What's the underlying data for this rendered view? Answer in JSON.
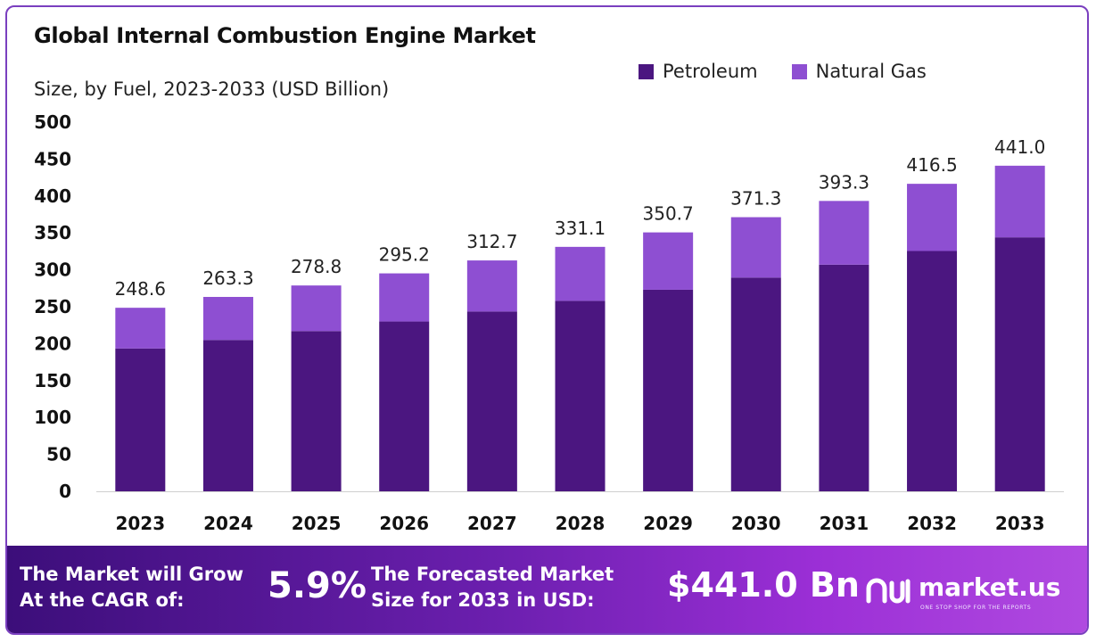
{
  "header": {
    "title": "Global Internal Combustion Engine Market",
    "subtitle": "Size, by Fuel, 2023-2033 (USD Billion)"
  },
  "legend": [
    {
      "label": "Petroleum",
      "color": "#4b1680"
    },
    {
      "label": "Natural Gas",
      "color": "#8e4fd2"
    }
  ],
  "chart_data": {
    "type": "bar",
    "stacked": true,
    "categories": [
      "2023",
      "2024",
      "2025",
      "2026",
      "2027",
      "2028",
      "2029",
      "2030",
      "2031",
      "2032",
      "2033"
    ],
    "series": [
      {
        "name": "Petroleum",
        "color": "#4b1680",
        "values": [
          193.5,
          205.0,
          217.0,
          230.0,
          243.5,
          258.0,
          273.0,
          289.5,
          307.0,
          325.5,
          344.0
        ]
      },
      {
        "name": "Natural Gas",
        "color": "#8e4fd2",
        "values": [
          55.1,
          58.3,
          61.8,
          65.2,
          69.2,
          73.1,
          77.7,
          81.8,
          86.3,
          91.0,
          97.0
        ]
      }
    ],
    "totals": [
      "248.6",
      "263.3",
      "278.8",
      "295.2",
      "312.7",
      "331.1",
      "350.7",
      "371.3",
      "393.3",
      "416.5",
      "441.0"
    ],
    "yticks": [
      "0",
      "50",
      "100",
      "150",
      "200",
      "250",
      "300",
      "350",
      "400",
      "450",
      "500"
    ],
    "ylim": [
      0,
      500
    ],
    "grid": false,
    "legend_position": "top-right"
  },
  "footer": {
    "cagr_label_line1": "The Market will Grow",
    "cagr_label_line2": "At the CAGR of:",
    "cagr_value": "5.9%",
    "forecast_label_line1": "The Forecasted Market",
    "forecast_label_line2": "Size for 2033 in USD:",
    "forecast_value": "$441.0 Bn",
    "brand_name": "market.us",
    "brand_tagline": "ONE STOP SHOP FOR THE REPORTS"
  }
}
